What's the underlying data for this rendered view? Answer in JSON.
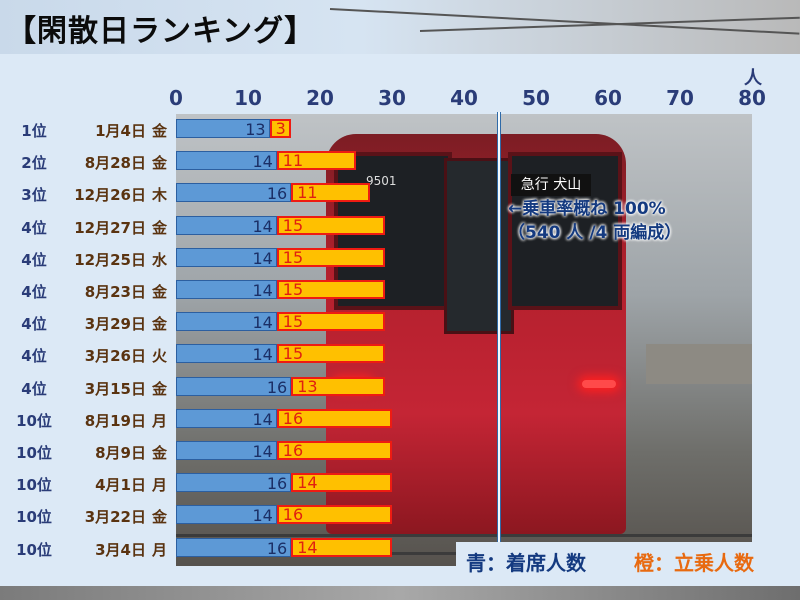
{
  "title": "【閑散日ランキング】",
  "chart_data": {
    "type": "bar",
    "stacked": true,
    "orientation": "horizontal",
    "xlim": [
      0,
      80
    ],
    "x_ticks": [
      "0",
      "10",
      "20",
      "30",
      "40",
      "50",
      "60",
      "70",
      "80"
    ],
    "x_unit": "人",
    "rows": [
      {
        "rank": "1位",
        "date": "1月4日",
        "day": "金",
        "seated": 13,
        "standing": 3
      },
      {
        "rank": "2位",
        "date": "8月28日",
        "day": "金",
        "seated": 14,
        "standing": 11
      },
      {
        "rank": "3位",
        "date": "12月26日",
        "day": "木",
        "seated": 16,
        "standing": 11
      },
      {
        "rank": "4位",
        "date": "12月27日",
        "day": "金",
        "seated": 14,
        "standing": 15
      },
      {
        "rank": "4位",
        "date": "12月25日",
        "day": "水",
        "seated": 14,
        "standing": 15
      },
      {
        "rank": "4位",
        "date": "8月23日",
        "day": "金",
        "seated": 14,
        "standing": 15
      },
      {
        "rank": "4位",
        "date": "3月29日",
        "day": "金",
        "seated": 14,
        "standing": 15
      },
      {
        "rank": "4位",
        "date": "3月26日",
        "day": "火",
        "seated": 14,
        "standing": 15
      },
      {
        "rank": "4位",
        "date": "3月15日",
        "day": "金",
        "seated": 16,
        "standing": 13
      },
      {
        "rank": "10位",
        "date": "8月19日",
        "day": "月",
        "seated": 14,
        "standing": 16
      },
      {
        "rank": "10位",
        "date": "8月9日",
        "day": "金",
        "seated": 14,
        "standing": 16
      },
      {
        "rank": "10位",
        "date": "4月1日",
        "day": "月",
        "seated": 16,
        "standing": 14
      },
      {
        "rank": "10位",
        "date": "3月22日",
        "day": "金",
        "seated": 14,
        "standing": 16
      },
      {
        "rank": "10位",
        "date": "3月4日",
        "day": "月",
        "seated": 16,
        "standing": 14
      }
    ],
    "reference_line": {
      "x": 45,
      "label_line1": "←乗車率概ね 100%",
      "label_line2": "（540 人 /4 両編成）"
    },
    "legend": {
      "seated_label": "青：着席人数",
      "standing_label": "橙：立乗人数",
      "position": "bottom-right"
    },
    "colors": {
      "seated": "#5d99d6",
      "standing": "#ffc000",
      "standing_border": "#ee1b12"
    }
  },
  "photo": {
    "destination_sign": "急行 犬山",
    "car_number": "9501"
  }
}
